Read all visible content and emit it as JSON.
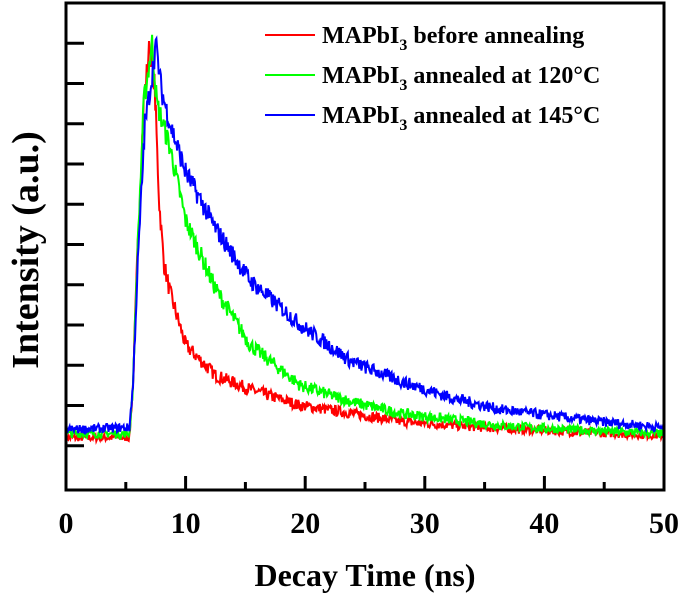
{
  "chart_data": {
    "type": "line",
    "title": "",
    "xlabel": "Decay Time (ns)",
    "ylabel": "Intensity (a.u.)",
    "xlim": [
      0,
      50
    ],
    "ylim": [
      -0.11,
      1.1
    ],
    "xticks": [
      "0",
      "10",
      "20",
      "30",
      "40",
      "50"
    ],
    "xtick_values": [
      0,
      10,
      20,
      30,
      40,
      50
    ],
    "x_minor_ticks": [
      5,
      15,
      25,
      35,
      45
    ],
    "ytick_values": [
      0,
      0.1,
      0.2,
      0.3,
      0.4,
      0.5,
      0.6,
      0.7,
      0.8,
      0.9,
      1.0
    ],
    "yticks_labeled": false,
    "grid": false,
    "legend_position": "top-right",
    "series": [
      {
        "name": "MAPbI3 before annealing",
        "name_main": "MAPbI",
        "name_sub": "3",
        "name_rest": " before annealing",
        "color": "#ff0000",
        "x": [
          0,
          5.3,
          5.6,
          6.0,
          6.5,
          7.0,
          7.4,
          7.8,
          8.2,
          8.7,
          10,
          12.5,
          15.4,
          19.6,
          24,
          28,
          35,
          42,
          50
        ],
        "y": [
          0.02,
          0.02,
          0.15,
          0.5,
          0.85,
          1.0,
          0.9,
          0.6,
          0.45,
          0.38,
          0.25,
          0.175,
          0.14,
          0.1,
          0.08,
          0.06,
          0.045,
          0.035,
          0.025
        ]
      },
      {
        "name": "MAPbI3 annealed at 120°C",
        "name_main": "MAPbI",
        "name_sub": "3",
        "name_rest": " annealed at 120°C",
        "color": "#00ff00",
        "x": [
          0,
          5.3,
          5.6,
          6.0,
          6.5,
          7.2,
          7.6,
          8.7,
          10,
          12.5,
          15.4,
          19.6,
          23.8,
          28,
          36.3,
          42,
          50
        ],
        "y": [
          0.03,
          0.03,
          0.15,
          0.5,
          0.85,
          1.0,
          0.85,
          0.74,
          0.56,
          0.39,
          0.25,
          0.15,
          0.11,
          0.08,
          0.05,
          0.04,
          0.03
        ]
      },
      {
        "name": "MAPbI3 annealed at 145°C",
        "name_main": "MAPbI",
        "name_sub": "3",
        "name_rest": " annealed at 145°C",
        "color": "#0000ff",
        "x": [
          0,
          5.3,
          5.6,
          6.0,
          6.6,
          7.2,
          7.5,
          8.0,
          8.7,
          10,
          12.5,
          15.4,
          19.6,
          23.8,
          28,
          32.1,
          36.3,
          44.6,
          50
        ],
        "y": [
          0.04,
          0.045,
          0.15,
          0.45,
          0.8,
          0.92,
          1.0,
          0.88,
          0.8,
          0.68,
          0.54,
          0.41,
          0.3,
          0.21,
          0.16,
          0.12,
          0.09,
          0.06,
          0.045
        ]
      }
    ]
  }
}
